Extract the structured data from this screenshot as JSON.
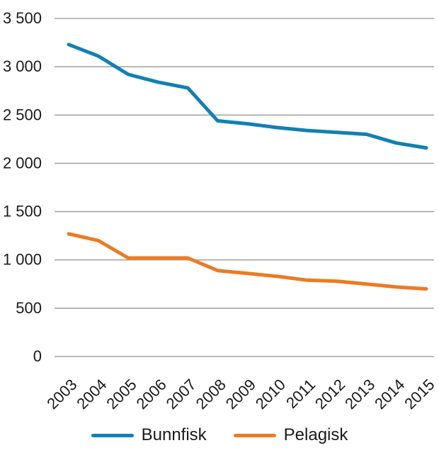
{
  "chart_data": {
    "type": "line",
    "title": "",
    "xlabel": "",
    "ylabel": "",
    "categories": [
      "2003",
      "2004",
      "2005",
      "2006",
      "2007",
      "2008",
      "2009",
      "2010",
      "2011",
      "2012",
      "2013",
      "2014",
      "2015"
    ],
    "series": [
      {
        "name": "Bunnfisk",
        "color": "#1280B3",
        "values": [
          3230,
          3110,
          2920,
          2840,
          2780,
          2440,
          2410,
          2370,
          2340,
          2320,
          2300,
          2210,
          2160
        ]
      },
      {
        "name": "Pelagisk",
        "color": "#EC7B23",
        "values": [
          1270,
          1200,
          1020,
          1020,
          1020,
          890,
          860,
          830,
          790,
          780,
          750,
          720,
          700
        ]
      }
    ],
    "ylim": [
      0,
      3500
    ],
    "ytick_step": 500,
    "ytick_labels": [
      "0",
      "500",
      "1 000",
      "1 500",
      "2 000",
      "2 500",
      "3 000",
      "3 500"
    ],
    "grid": true,
    "gridline_color": "#A6A6A6",
    "text_color": "#1A1A1A",
    "legend_position": "bottom"
  },
  "legend": {
    "items": [
      {
        "label": "Bunnfisk"
      },
      {
        "label": "Pelagisk"
      }
    ]
  }
}
